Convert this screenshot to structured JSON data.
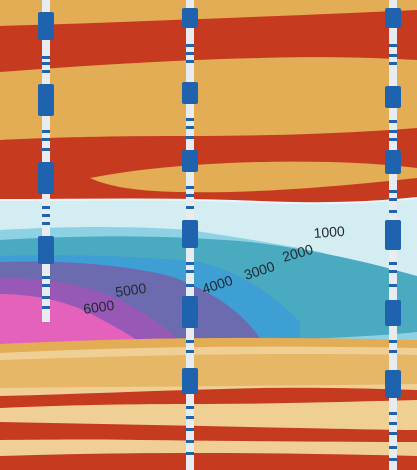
{
  "contour_labels": {
    "c1000": "1000",
    "c2000": "2000",
    "c3000": "3000",
    "c4000": "4000",
    "c5000": "5000",
    "c6000": "6000"
  },
  "colors": {
    "red_layer": "#c63b1f",
    "tan_layer": "#e2ad55",
    "light_tan_layer": "#f0cf94",
    "contour_lightest": "#d3edf3",
    "contour_light_blue": "#8cd2e4",
    "contour_teal": "#4aaac0",
    "contour_blue": "#3d9fd3",
    "contour_slate": "#6d6bb0",
    "contour_purple": "#9858b6",
    "contour_magenta": "#e562bc",
    "well_casing": "#1f63ae",
    "well_pipe": "#e8ecf0"
  },
  "wells": [
    "well-left",
    "well-center",
    "well-right"
  ]
}
